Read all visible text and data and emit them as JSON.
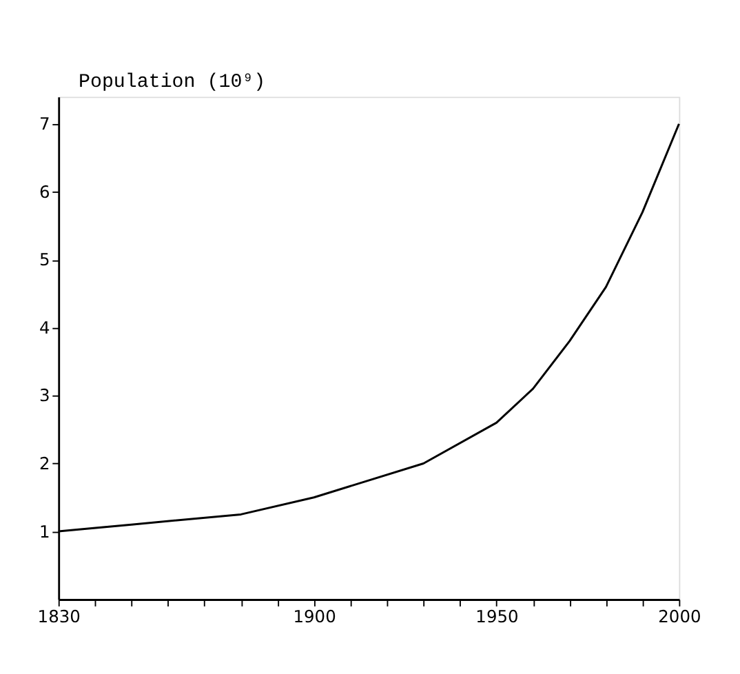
{
  "chart_data": {
    "type": "line",
    "ylabel": "Population (10⁹)",
    "x": [
      1830,
      1850,
      1880,
      1900,
      1930,
      1950,
      1960,
      1970,
      1980,
      1990,
      2000
    ],
    "series": [
      {
        "color": "#000000",
        "values": [
          1.0,
          1.1,
          1.25,
          1.5,
          2.0,
          2.6,
          3.1,
          3.8,
          4.6,
          5.7,
          7.0
        ]
      }
    ],
    "xlim": [
      1830,
      2000
    ],
    "ylim": [
      0,
      7.4
    ],
    "xticks": [
      1830,
      {
        "value": 1840,
        "label": null
      },
      {
        "value": 1850,
        "label": null
      },
      {
        "value": 1860,
        "label": null
      },
      {
        "value": 1870,
        "label": null
      },
      {
        "value": 1880,
        "label": null
      },
      {
        "value": 1890,
        "label": null
      },
      1900,
      {
        "value": 1910,
        "label": null
      },
      {
        "value": 1920,
        "label": null
      },
      {
        "value": 1930,
        "label": null
      },
      {
        "value": 1940,
        "label": null
      },
      1950,
      {
        "value": 1960,
        "label": null
      },
      {
        "value": 1970,
        "label": null
      },
      {
        "value": 1980,
        "label": null
      },
      {
        "value": 1990,
        "label": null
      },
      2000
    ],
    "yticks": [
      1,
      2,
      3,
      4,
      5,
      6,
      7
    ],
    "grid": false,
    "legend": false,
    "marker": "none",
    "line_style": "solid"
  }
}
